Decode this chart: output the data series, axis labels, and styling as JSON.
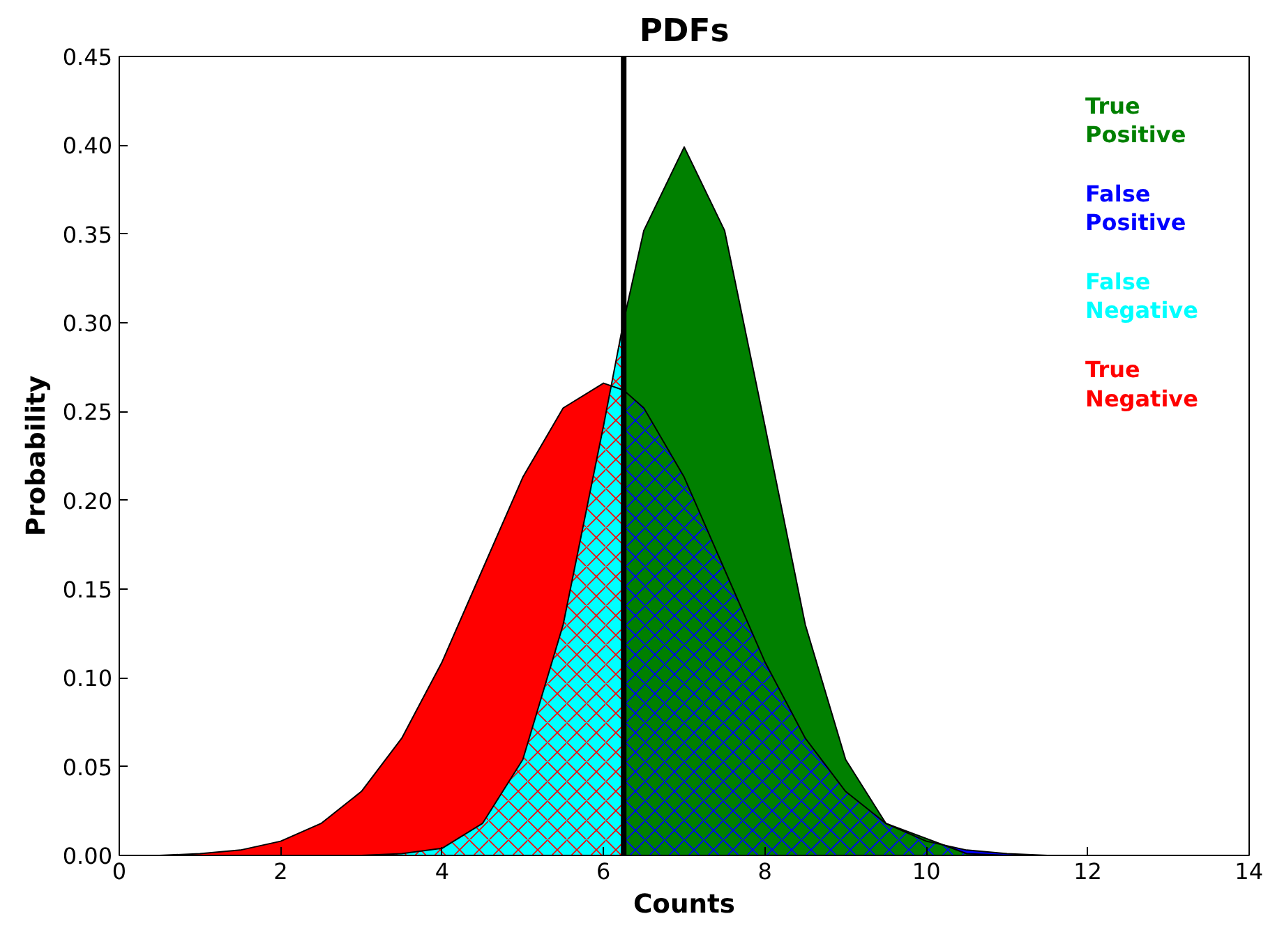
{
  "chart_data": {
    "type": "area",
    "title": "PDFs",
    "xlabel": "Counts",
    "ylabel": "Probability",
    "xlim": [
      0,
      14
    ],
    "xticks": [
      0,
      2,
      4,
      6,
      8,
      10,
      12,
      14
    ],
    "ylim": [
      0,
      0.45
    ],
    "yticks": [
      {
        "value": 0,
        "label": "0.00"
      },
      {
        "value": 0.05,
        "label": "0.05"
      },
      {
        "value": 0.1,
        "label": "0.10"
      },
      {
        "value": 0.15,
        "label": "0.15"
      },
      {
        "value": 0.2,
        "label": "0.20"
      },
      {
        "value": 0.25,
        "label": "0.25"
      },
      {
        "value": 0.3,
        "label": "0.30"
      },
      {
        "value": 0.35,
        "label": "0.35"
      },
      {
        "value": 0.4,
        "label": "0.40"
      },
      {
        "value": 0.45,
        "label": "0.45"
      }
    ],
    "grid": false,
    "legend": "top right",
    "series": [
      {
        "name": "True Positive",
        "color": "#008000",
        "x": [
          6.25,
          6.5,
          7,
          7.5,
          8,
          8.5,
          9,
          9.5,
          10,
          10.5,
          11,
          11.5,
          12,
          12.5,
          13,
          13.5,
          14
        ],
        "values": [
          0.301,
          0.352,
          0.399,
          0.352,
          0.242,
          0.13,
          0.054,
          0.018,
          null,
          0.001,
          0,
          0,
          0,
          0,
          0,
          0,
          0
        ]
      },
      {
        "name": "False Positive",
        "color": "#0000ff",
        "x": [
          6.25,
          6.5,
          7,
          7.5,
          8,
          8.5,
          9,
          9.5,
          10,
          10.5,
          11,
          11.5,
          12,
          12.5,
          13,
          13.5,
          14
        ],
        "values": [
          0.262,
          0.252,
          0.213,
          0.161,
          0.109,
          0.066,
          0.036,
          0.018,
          0.008,
          0.003,
          0.001,
          0,
          0,
          0,
          0,
          0,
          0
        ]
      },
      {
        "name": "False Negative",
        "color": "#00ffff",
        "x": [
          0,
          0.5,
          1,
          1.5,
          2,
          2.5,
          3,
          3.5,
          4,
          4.5,
          5,
          5.5,
          6,
          6.25
        ],
        "values": [
          0,
          0,
          0,
          0,
          0,
          0,
          0,
          0.001,
          0.004,
          0.018,
          0.054,
          0.13,
          0.242,
          0.301
        ]
      },
      {
        "name": "True Negative",
        "color": "#ff0000",
        "x": [
          0,
          0.5,
          1,
          1.5,
          2,
          2.5,
          3,
          3.5,
          4,
          4.5,
          5,
          5.5,
          6,
          6.25
        ],
        "values": [
          0,
          0,
          0.001,
          0.003,
          0.008,
          0.018,
          0.036,
          0.066,
          0.109,
          0.161,
          0.213,
          0.252,
          0.266,
          0.262
        ]
      }
    ],
    "ref_lines": [
      {
        "axis": "x",
        "value": 6.25,
        "color": "#000000"
      }
    ]
  }
}
